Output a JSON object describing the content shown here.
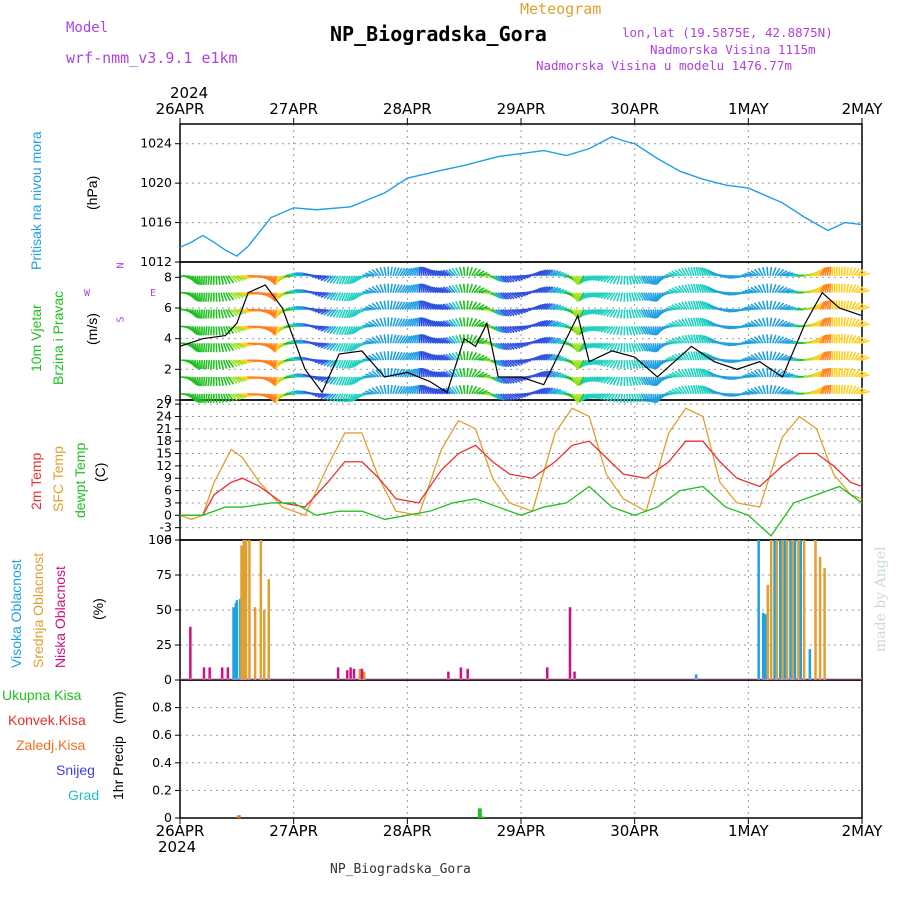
{
  "header": {
    "model_label": "Model",
    "model_name": "wrf-nmm_v3.9.1 e1km",
    "meteogram": "Meteogram",
    "title": "NP_Biogradska_Gora",
    "lonlat": "lon,lat (19.5875E, 42.8875N)",
    "elevation": "Nadmorska Visina 1115m",
    "model_elevation": "Nadmorska Visina u modelu 1476.77m",
    "year_top": "2024",
    "year_bottom": "2024",
    "footer": "NP_Biogradska_Gora",
    "credit": "made by Angel"
  },
  "colors": {
    "pressure": "#1ea0e6",
    "temp2m": "#e83030",
    "sfc": "#e0a030",
    "dew": "#20c020",
    "high_cloud": "#1ea0e6",
    "mid_cloud": "#e0a030",
    "low_cloud": "#d01080",
    "grid": "#999999",
    "purple": "#b040e0"
  },
  "chart_data": [
    {
      "type": "line",
      "panel": "pressure",
      "title": "",
      "ylabel_1": "Pritisak na nivou mora",
      "ylabel_2": "(hPa)",
      "ylim": [
        1012,
        1026
      ],
      "yticks": [
        "1012",
        "1016",
        "1020",
        "1024"
      ],
      "x_ticks": [
        "26APR",
        "27APR",
        "28APR",
        "29APR",
        "30APR",
        "1MAY",
        "2MAY"
      ],
      "series": [
        {
          "x": [
            0,
            0.1,
            0.2,
            0.3,
            0.4,
            0.5,
            0.6,
            0.8,
            1.0,
            1.2,
            1.5,
            1.8,
            2.0,
            2.3,
            2.5,
            2.8,
            3.0,
            3.2,
            3.4,
            3.6,
            3.8,
            3.9,
            4.0,
            4.2,
            4.4,
            4.6,
            4.8,
            5.0,
            5.3,
            5.5,
            5.7,
            5.85,
            6.0
          ],
          "values": [
            1013.5,
            1014.0,
            1014.7,
            1014.0,
            1013.2,
            1012.6,
            1013.6,
            1016.5,
            1017.5,
            1017.3,
            1017.6,
            1019.0,
            1020.5,
            1021.3,
            1021.8,
            1022.7,
            1023.0,
            1023.3,
            1022.8,
            1023.5,
            1024.7,
            1024.3,
            1024.0,
            1022.5,
            1021.2,
            1020.4,
            1019.8,
            1019.5,
            1018.0,
            1016.5,
            1015.2,
            1016.0,
            1015.8
          ]
        }
      ]
    },
    {
      "type": "line",
      "panel": "wind",
      "title": "",
      "ylabel_1": "10m Vjetar",
      "ylabel_2": "Brzina i Pravac",
      "ylabel_3": "(m/s)",
      "compass": [
        "N",
        "W",
        "E",
        "S"
      ],
      "ylim": [
        0,
        9
      ],
      "yticks": [
        "0",
        "2",
        "4",
        "6",
        "8"
      ],
      "series": [
        {
          "name": "speed",
          "x": [
            0,
            0.2,
            0.4,
            0.5,
            0.6,
            0.75,
            0.9,
            1.1,
            1.25,
            1.4,
            1.6,
            1.8,
            2.0,
            2.2,
            2.35,
            2.5,
            2.6,
            2.7,
            2.8,
            3.0,
            3.2,
            3.4,
            3.5,
            3.6,
            3.8,
            4.0,
            4.2,
            4.5,
            4.7,
            4.9,
            5.1,
            5.3,
            5.5,
            5.65,
            5.8,
            6.0
          ],
          "values": [
            3.5,
            4.0,
            4.2,
            5.0,
            7.0,
            7.5,
            6.0,
            2.0,
            0.5,
            3.0,
            3.2,
            1.5,
            1.8,
            1.2,
            0.5,
            4.0,
            3.5,
            5.0,
            1.5,
            1.5,
            1.0,
            4.0,
            5.5,
            2.5,
            3.2,
            2.8,
            1.5,
            3.5,
            2.5,
            2.0,
            2.5,
            1.5,
            5.0,
            7.0,
            6.0,
            5.5
          ]
        }
      ]
    },
    {
      "type": "line",
      "panel": "temperature",
      "title": "",
      "ylabel_1": "2m Temp",
      "ylabel_2": "SFC Temp",
      "ylabel_3": "dewpt Temp",
      "ylabel_4": "(C)",
      "ylim": [
        -6,
        28
      ],
      "yticks": [
        "-6",
        "-3",
        "0",
        "3",
        "6",
        "9",
        "12",
        "15",
        "18",
        "21",
        "24",
        "27"
      ],
      "series": [
        {
          "name": "2m Temp",
          "x": [
            0,
            0.1,
            0.2,
            0.3,
            0.45,
            0.55,
            0.7,
            0.9,
            1.1,
            1.3,
            1.45,
            1.6,
            1.75,
            1.9,
            2.1,
            2.3,
            2.45,
            2.6,
            2.75,
            2.9,
            3.1,
            3.3,
            3.45,
            3.6,
            3.75,
            3.9,
            4.1,
            4.3,
            4.45,
            4.6,
            4.75,
            4.9,
            5.1,
            5.3,
            5.45,
            5.6,
            5.75,
            5.9,
            6.0
          ],
          "values": [
            0,
            0,
            0,
            5,
            8,
            9,
            7,
            3,
            2,
            8,
            13,
            13,
            9,
            4,
            3,
            11,
            15,
            17,
            13,
            10,
            9,
            13,
            17,
            18,
            14,
            10,
            9,
            13,
            18,
            18,
            13,
            9,
            7,
            12,
            15,
            15,
            12,
            8,
            7
          ]
        },
        {
          "name": "SFC Temp",
          "x": [
            0,
            0.1,
            0.2,
            0.3,
            0.45,
            0.55,
            0.7,
            0.9,
            1.1,
            1.3,
            1.45,
            1.6,
            1.75,
            1.9,
            2.1,
            2.3,
            2.45,
            2.6,
            2.75,
            2.9,
            3.1,
            3.3,
            3.45,
            3.6,
            3.75,
            3.9,
            4.1,
            4.3,
            4.45,
            4.6,
            4.75,
            4.9,
            5.1,
            5.3,
            5.45,
            5.6,
            5.75,
            5.9,
            6.0
          ],
          "values": [
            0,
            -1,
            0,
            8,
            16,
            14,
            8,
            2,
            0,
            12,
            20,
            20,
            9,
            1,
            0,
            16,
            23,
            21,
            9,
            3,
            1,
            20,
            26,
            24,
            10,
            4,
            1,
            20,
            26,
            24,
            8,
            3,
            2,
            19,
            24,
            21,
            10,
            5,
            4
          ]
        },
        {
          "name": "dewpt Temp",
          "x": [
            0,
            0.2,
            0.4,
            0.55,
            0.8,
            1.0,
            1.2,
            1.4,
            1.6,
            1.8,
            2.0,
            2.2,
            2.4,
            2.6,
            2.8,
            3.0,
            3.2,
            3.4,
            3.6,
            3.8,
            4.0,
            4.2,
            4.4,
            4.6,
            4.8,
            5.0,
            5.2,
            5.4,
            5.6,
            5.8,
            6.0
          ],
          "values": [
            0,
            0,
            2,
            2,
            3,
            3,
            0,
            1,
            1,
            -1,
            0,
            1,
            3,
            4,
            2,
            0,
            2,
            3,
            7,
            2,
            0,
            2,
            6,
            7,
            2,
            0,
            -5,
            3,
            5,
            7,
            3
          ]
        }
      ]
    },
    {
      "type": "bar",
      "panel": "cloud",
      "title": "",
      "ylabel_1": "Visoka Oblacnost",
      "ylabel_2": "Srednja Oblacnost",
      "ylabel_3": "Niska Oblacnost",
      "ylabel_4": "(%)",
      "ylim": [
        0,
        100
      ],
      "yticks": [
        "0",
        "25",
        "50",
        "75",
        "100"
      ],
      "series": [
        {
          "name": "Visoka",
          "x": [
            0.46,
            0.48,
            0.49,
            0.51,
            0.52,
            4.53,
            5.08,
            5.12,
            5.14,
            5.22,
            5.27,
            5.31,
            5.36,
            5.4,
            5.45,
            5.53
          ],
          "values": [
            52,
            55,
            57,
            0,
            58,
            4,
            100,
            48,
            47,
            100,
            100,
            100,
            100,
            100,
            100,
            22
          ]
        },
        {
          "name": "Srednja",
          "x": [
            0.53,
            0.55,
            0.57,
            0.6,
            0.65,
            0.7,
            0.73,
            0.77,
            1.57,
            1.61,
            5.16,
            5.19,
            5.24,
            5.29,
            5.33,
            5.38,
            5.43,
            5.48,
            5.58,
            5.62,
            5.66
          ],
          "values": [
            96,
            100,
            100,
            100,
            52,
            100,
            50,
            72,
            8,
            6,
            68,
            100,
            100,
            100,
            100,
            100,
            100,
            100,
            100,
            88,
            80
          ]
        },
        {
          "name": "Niska",
          "x": [
            0.08,
            0.2,
            0.25,
            0.36,
            0.41,
            1.38,
            1.46,
            1.49,
            1.52,
            1.59,
            2.35,
            2.46,
            2.52,
            3.22,
            3.42,
            3.46
          ],
          "values": [
            38,
            9,
            9,
            9,
            9,
            9,
            7,
            9,
            8,
            8,
            6,
            9,
            8,
            9,
            52,
            6
          ]
        }
      ]
    },
    {
      "type": "bar",
      "panel": "precip",
      "title": "",
      "ylabel_1": "1hr Precip",
      "ylabel_2": "(mm)",
      "legend": [
        "Ukupna Kisa",
        "Konvek.Kisa",
        "Zaledj.Kisa",
        "Snijeg",
        "Grad"
      ],
      "ylim": [
        0,
        1
      ],
      "yticks": [
        "0",
        "0.2",
        "0.4",
        "0.6",
        "0.8"
      ],
      "series": [
        {
          "name": "Ukupna Kisa",
          "x": [
            2.62,
            2.65
          ],
          "values": [
            0.07,
            0.01
          ]
        },
        {
          "name": "Zaledj.Kisa",
          "x": [
            0.5
          ],
          "values": [
            0.02
          ]
        }
      ]
    }
  ]
}
